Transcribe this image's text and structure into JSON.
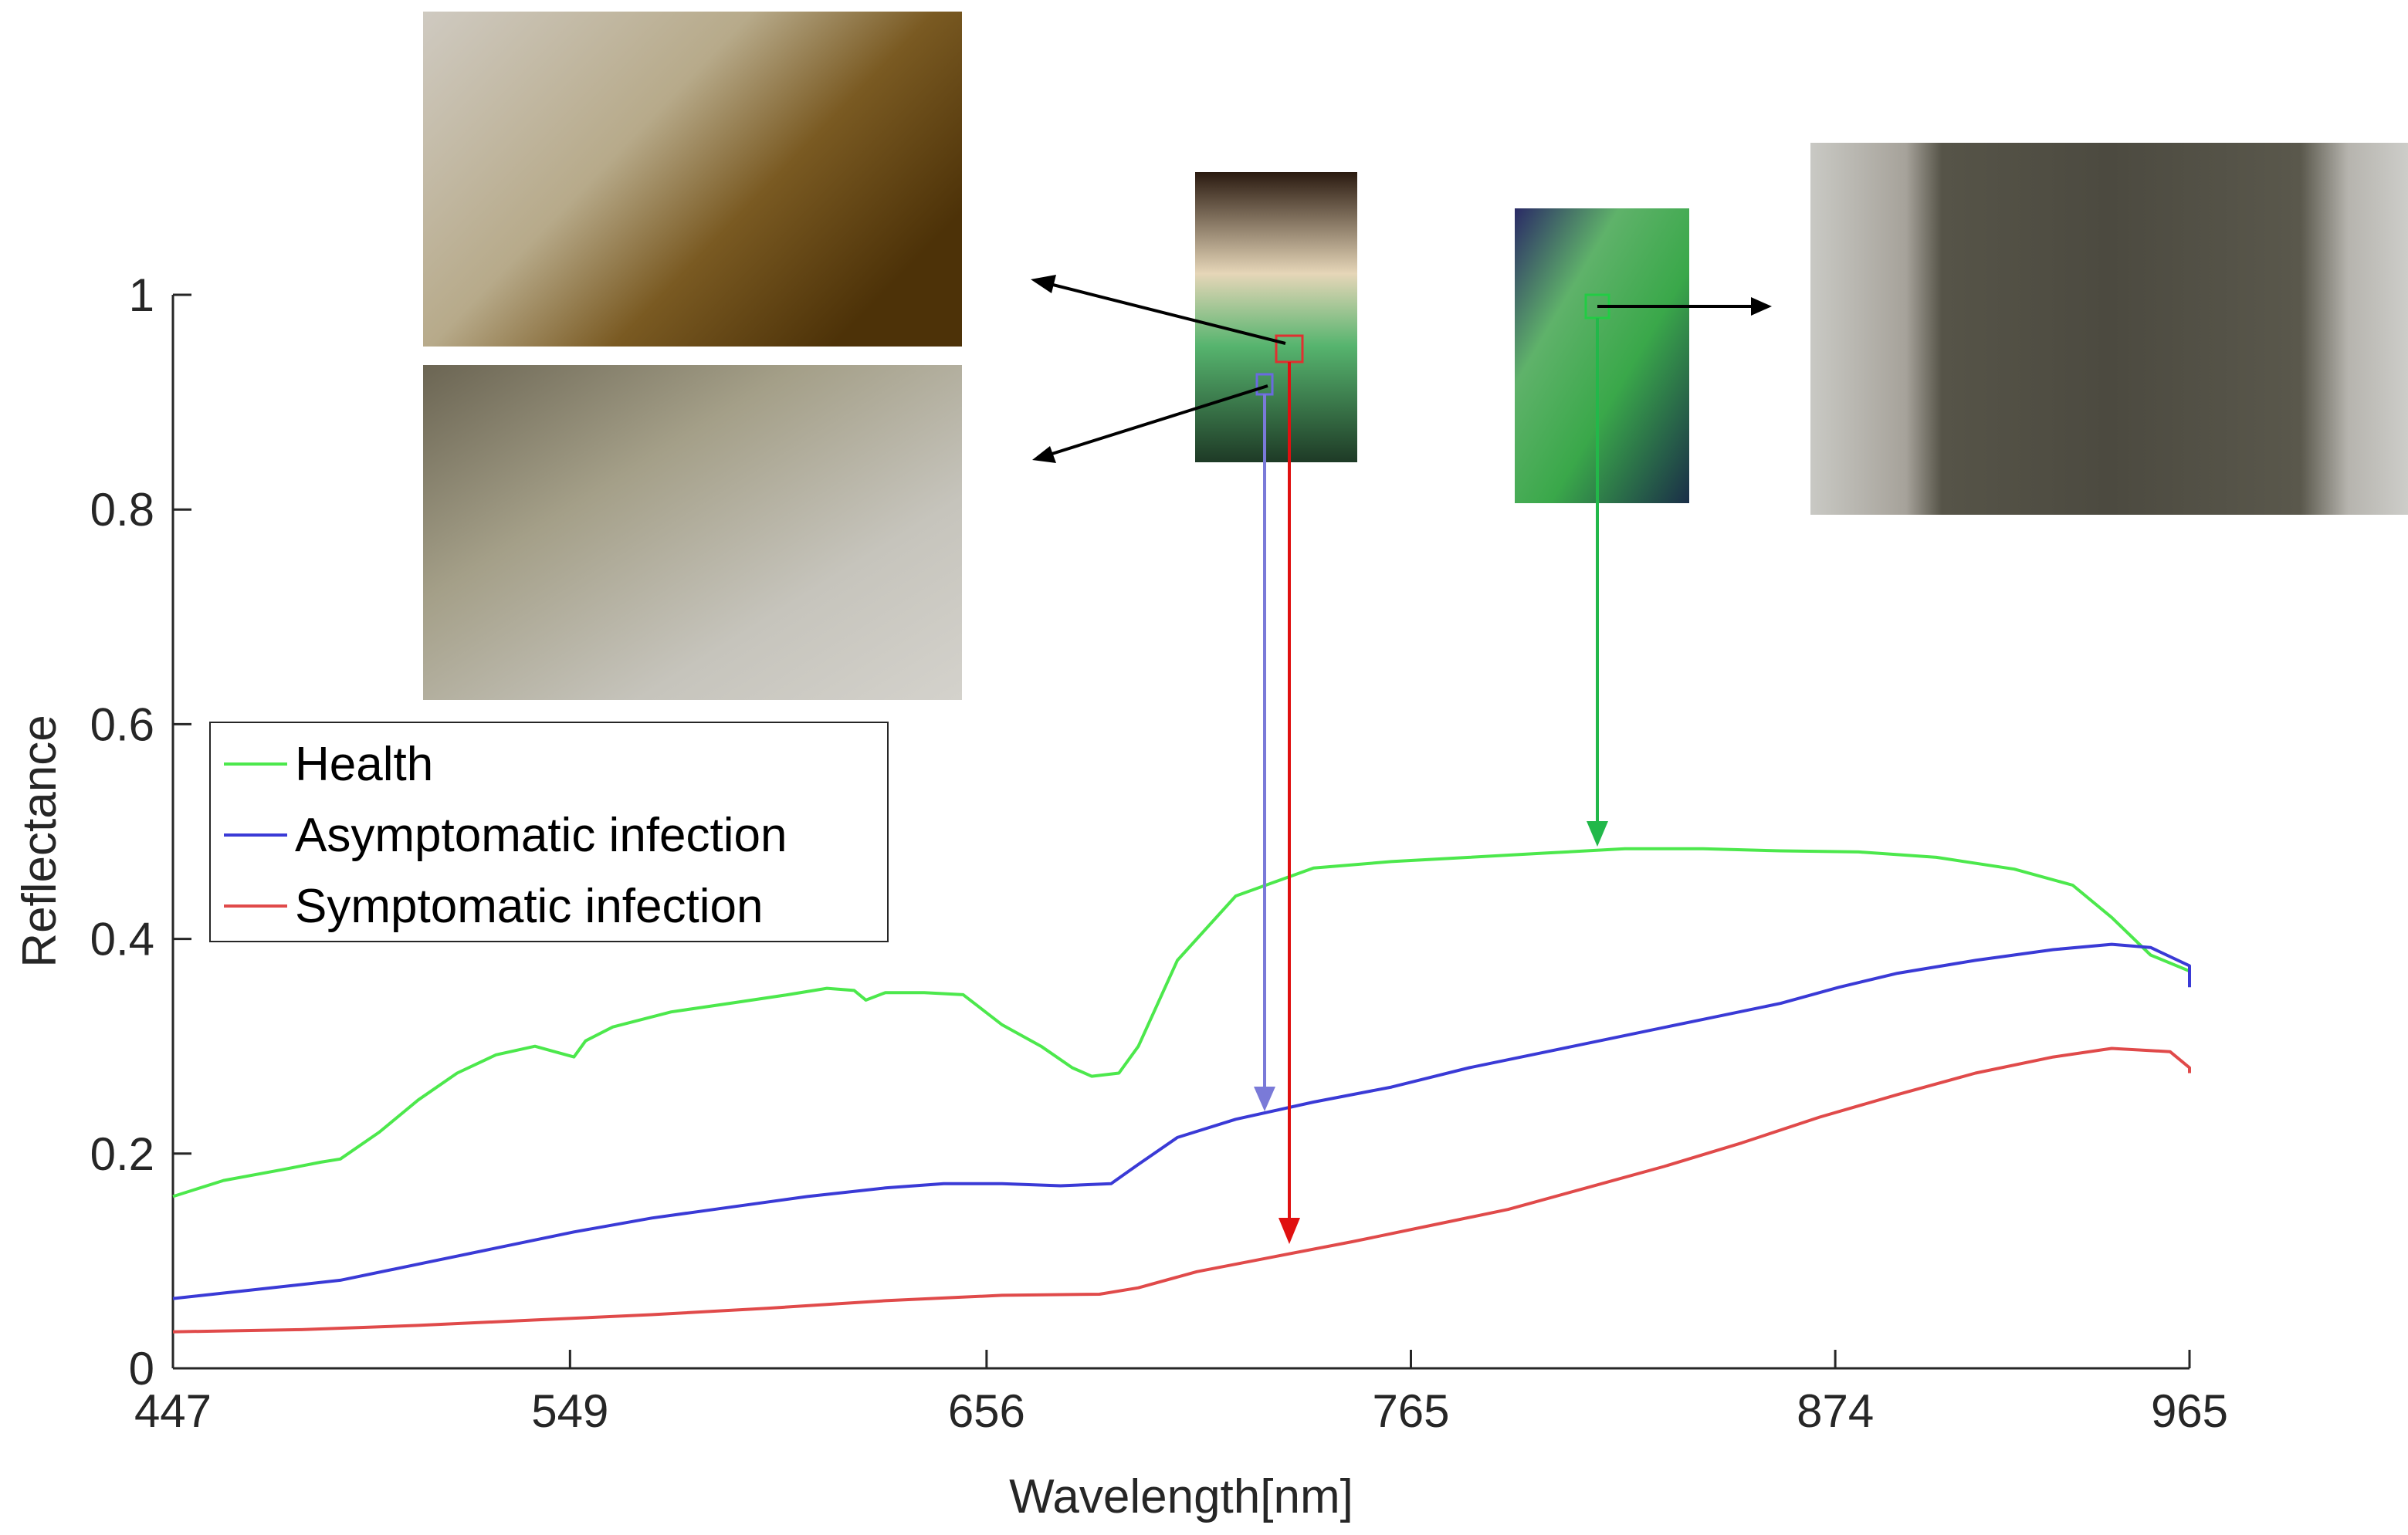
{
  "chart_data": {
    "type": "line",
    "title": "",
    "xlabel": "Wavelength[nm]",
    "ylabel": "Reflectance",
    "xlim": [
      447,
      965
    ],
    "ylim": [
      0,
      1
    ],
    "x_ticks": [
      447,
      549,
      656,
      765,
      874,
      965
    ],
    "y_ticks": [
      "0",
      "0.2",
      "0.4",
      "0.6",
      "0.8",
      "1"
    ],
    "y_tick_values": [
      0,
      0.2,
      0.4,
      0.6,
      0.8,
      1
    ],
    "grid": false,
    "legend_position": "left",
    "series": [
      {
        "name": "Health",
        "color": "#4ce84c",
        "points": [
          [
            447,
            0.16
          ],
          [
            460,
            0.175
          ],
          [
            475,
            0.185
          ],
          [
            485,
            0.192
          ],
          [
            490,
            0.195
          ],
          [
            500,
            0.22
          ],
          [
            510,
            0.25
          ],
          [
            520,
            0.275
          ],
          [
            530,
            0.292
          ],
          [
            540,
            0.3
          ],
          [
            545,
            0.295
          ],
          [
            550,
            0.29
          ],
          [
            553,
            0.305
          ],
          [
            560,
            0.318
          ],
          [
            575,
            0.332
          ],
          [
            590,
            0.34
          ],
          [
            605,
            0.348
          ],
          [
            615,
            0.354
          ],
          [
            622,
            0.352
          ],
          [
            625,
            0.343
          ],
          [
            630,
            0.35
          ],
          [
            640,
            0.35
          ],
          [
            650,
            0.348
          ],
          [
            660,
            0.32
          ],
          [
            670,
            0.3
          ],
          [
            678,
            0.28
          ],
          [
            683,
            0.272
          ],
          [
            690,
            0.275
          ],
          [
            695,
            0.3
          ],
          [
            705,
            0.38
          ],
          [
            720,
            0.44
          ],
          [
            740,
            0.466
          ],
          [
            760,
            0.472
          ],
          [
            780,
            0.476
          ],
          [
            800,
            0.48
          ],
          [
            820,
            0.484
          ],
          [
            840,
            0.484
          ],
          [
            860,
            0.482
          ],
          [
            880,
            0.481
          ],
          [
            900,
            0.476
          ],
          [
            920,
            0.465
          ],
          [
            935,
            0.45
          ],
          [
            945,
            0.42
          ],
          [
            955,
            0.385
          ],
          [
            965,
            0.37
          ]
        ]
      },
      {
        "name": "Asymptomatic infection",
        "color": "#3a3ad6",
        "points": [
          [
            447,
            0.065
          ],
          [
            465,
            0.072
          ],
          [
            490,
            0.082
          ],
          [
            510,
            0.097
          ],
          [
            530,
            0.112
          ],
          [
            550,
            0.127
          ],
          [
            570,
            0.14
          ],
          [
            590,
            0.15
          ],
          [
            610,
            0.16
          ],
          [
            630,
            0.168
          ],
          [
            645,
            0.172
          ],
          [
            660,
            0.172
          ],
          [
            675,
            0.17
          ],
          [
            688,
            0.172
          ],
          [
            695,
            0.19
          ],
          [
            705,
            0.215
          ],
          [
            720,
            0.232
          ],
          [
            740,
            0.248
          ],
          [
            760,
            0.262
          ],
          [
            780,
            0.28
          ],
          [
            800,
            0.295
          ],
          [
            820,
            0.31
          ],
          [
            840,
            0.325
          ],
          [
            860,
            0.34
          ],
          [
            875,
            0.355
          ],
          [
            890,
            0.368
          ],
          [
            910,
            0.38
          ],
          [
            930,
            0.39
          ],
          [
            945,
            0.395
          ],
          [
            955,
            0.392
          ],
          [
            965,
            0.375
          ],
          [
            975,
            0.355
          ]
        ]
      },
      {
        "name": "Symptomatic infection",
        "color": "#e04a4a",
        "points": [
          [
            447,
            0.034
          ],
          [
            480,
            0.036
          ],
          [
            510,
            0.04
          ],
          [
            540,
            0.045
          ],
          [
            570,
            0.05
          ],
          [
            600,
            0.056
          ],
          [
            630,
            0.063
          ],
          [
            660,
            0.068
          ],
          [
            685,
            0.069
          ],
          [
            695,
            0.075
          ],
          [
            710,
            0.09
          ],
          [
            730,
            0.104
          ],
          [
            750,
            0.118
          ],
          [
            770,
            0.133
          ],
          [
            790,
            0.148
          ],
          [
            810,
            0.168
          ],
          [
            830,
            0.188
          ],
          [
            850,
            0.21
          ],
          [
            870,
            0.234
          ],
          [
            890,
            0.255
          ],
          [
            910,
            0.275
          ],
          [
            930,
            0.29
          ],
          [
            945,
            0.298
          ],
          [
            960,
            0.295
          ],
          [
            975,
            0.28
          ],
          [
            985,
            0.275
          ]
        ]
      }
    ]
  }
}
